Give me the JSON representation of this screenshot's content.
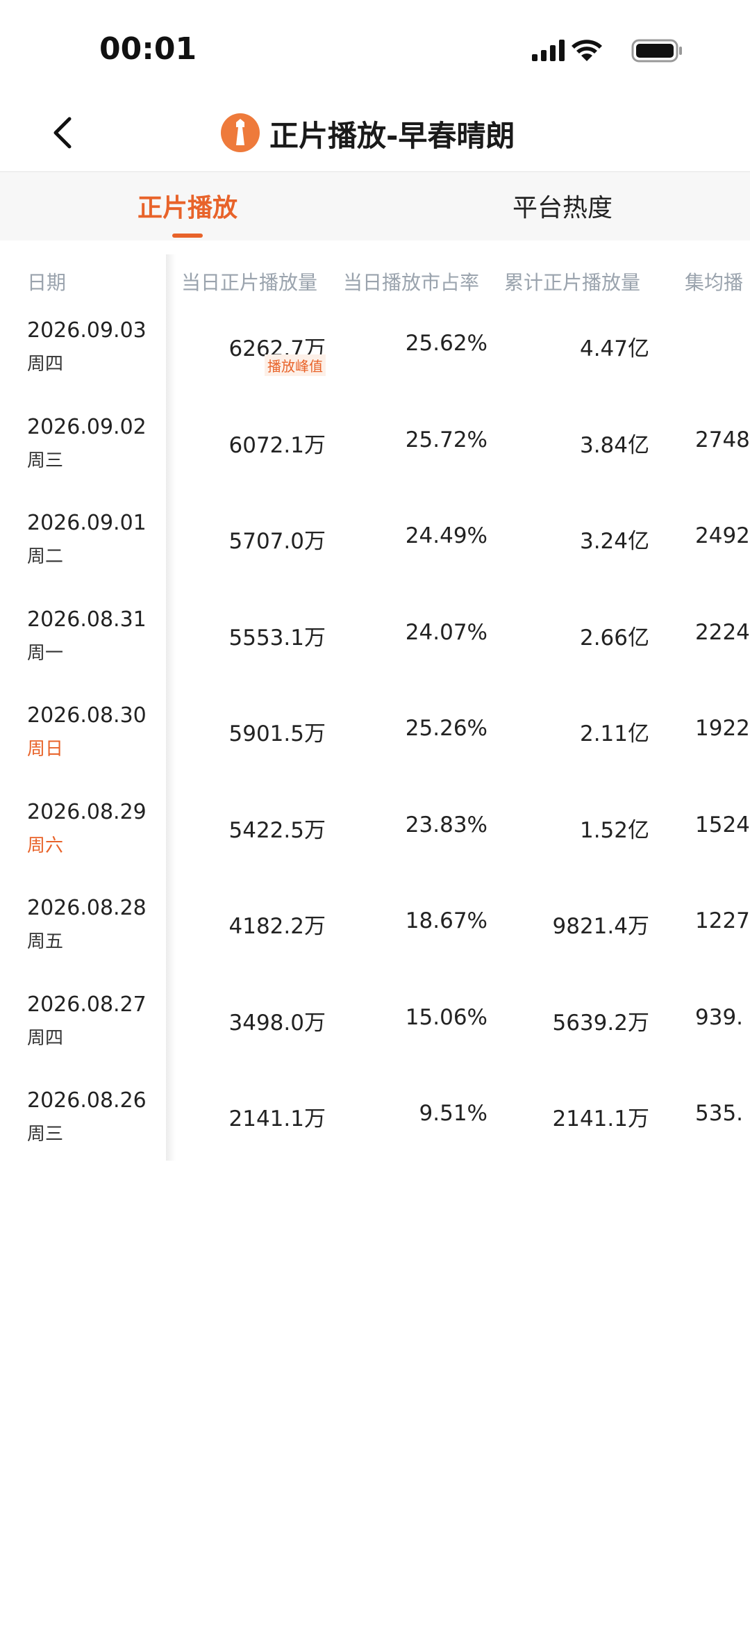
{
  "status_bar": {
    "time": "00:01"
  },
  "header": {
    "title": "正片播放-早春晴朗"
  },
  "tabs": [
    {
      "label": "正片播放",
      "active": true,
      "color": "#e8632a"
    },
    {
      "label": "平台热度",
      "active": false,
      "color": "#222222"
    }
  ],
  "table": {
    "columns": [
      "日期",
      "当日正片播放量",
      "当日播放市占率",
      "累计正片播放量",
      "集均播"
    ],
    "rows": [
      {
        "date": "2026.09.03",
        "weekday": "周四",
        "daily": "6262.7万",
        "badge": "播放峰值",
        "share": "25.62%",
        "total": "4.47亿"
      },
      {
        "date": "2026.09.02",
        "weekday": "周三",
        "daily": "6072.1万",
        "share": "25.72%",
        "total": "3.84亿",
        "avg": "2748."
      },
      {
        "date": "2026.09.01",
        "weekday": "周二",
        "daily": "5707.0万",
        "share": "24.49%",
        "total": "3.24亿",
        "avg": "2492."
      },
      {
        "date": "2026.08.31",
        "weekday": "周一",
        "daily": "5553.1万",
        "share": "24.07%",
        "total": "2.66亿",
        "avg": "2224."
      },
      {
        "date": "2026.08.30",
        "weekday": "周日",
        "weekday_color": "#e8632a",
        "daily": "5901.5万",
        "share": "25.26%",
        "total": "2.11亿",
        "avg": "1922."
      },
      {
        "date": "2026.08.29",
        "weekday": "周六",
        "weekday_color": "#e8632a",
        "daily": "5422.5万",
        "share": "23.83%",
        "total": "1.52亿",
        "avg": "1524."
      },
      {
        "date": "2026.08.28",
        "weekday": "周五",
        "daily": "4182.2万",
        "share": "18.67%",
        "total": "9821.4万",
        "avg": "1227."
      },
      {
        "date": "2026.08.27",
        "weekday": "周四",
        "daily": "3498.0万",
        "share": "15.06%",
        "total": "5639.2万",
        "avg": "939."
      },
      {
        "date": "2026.08.26",
        "weekday": "周三",
        "daily": "2141.1万",
        "share": "9.51%",
        "total": "2141.1万",
        "avg": "535."
      }
    ]
  }
}
